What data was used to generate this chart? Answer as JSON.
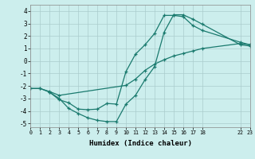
{
  "xlabel": "Humidex (Indice chaleur)",
  "bg_color": "#cceeed",
  "grid_color": "#aacccc",
  "line_color": "#1a7a6e",
  "line1": {
    "x": [
      0,
      1,
      2,
      3,
      4,
      5,
      6,
      7,
      8,
      9,
      10,
      11,
      12,
      13,
      14,
      15,
      16,
      17,
      18,
      22,
      23
    ],
    "y": [
      -2.2,
      -2.2,
      -2.5,
      -3.0,
      -3.8,
      -4.2,
      -4.55,
      -4.75,
      -4.85,
      -4.85,
      -3.45,
      -2.75,
      -1.5,
      -0.45,
      2.3,
      3.7,
      3.7,
      3.35,
      2.95,
      1.3,
      1.2
    ]
  },
  "line2": {
    "x": [
      2,
      3,
      4,
      5,
      6,
      7,
      8,
      9,
      10,
      11,
      12,
      13,
      14,
      15,
      16,
      17,
      18,
      22,
      23
    ],
    "y": [
      -2.5,
      -3.1,
      -3.35,
      -3.85,
      -3.9,
      -3.85,
      -3.4,
      -3.45,
      -0.85,
      0.55,
      1.3,
      2.2,
      3.65,
      3.65,
      3.55,
      2.85,
      2.45,
      1.5,
      1.3
    ]
  },
  "line3": {
    "x": [
      0,
      1,
      2,
      3,
      10,
      11,
      12,
      13,
      14,
      15,
      16,
      17,
      18,
      22,
      23
    ],
    "y": [
      -2.2,
      -2.2,
      -2.45,
      -2.75,
      -1.95,
      -1.45,
      -0.75,
      -0.25,
      0.1,
      0.4,
      0.6,
      0.8,
      1.0,
      1.4,
      1.3
    ]
  },
  "xlim": [
    0,
    23
  ],
  "ylim": [
    -5.3,
    4.5
  ],
  "xticks": [
    0,
    1,
    2,
    3,
    4,
    5,
    6,
    7,
    8,
    9,
    10,
    11,
    12,
    13,
    14,
    15,
    16,
    17,
    18,
    22,
    23
  ],
  "xtick_labels": [
    "0",
    "1",
    "2",
    "3",
    "4",
    "5",
    "6",
    "7",
    "8",
    "9",
    "10",
    "11",
    "12",
    "13",
    "14",
    "15",
    "16",
    "17",
    "18",
    "22",
    "23"
  ],
  "yticks": [
    -5,
    -4,
    -3,
    -2,
    -1,
    0,
    1,
    2,
    3,
    4
  ],
  "all_xticks": [
    0,
    1,
    2,
    3,
    4,
    5,
    6,
    7,
    8,
    9,
    10,
    11,
    12,
    13,
    14,
    15,
    16,
    17,
    18,
    19,
    20,
    21,
    22,
    23
  ]
}
